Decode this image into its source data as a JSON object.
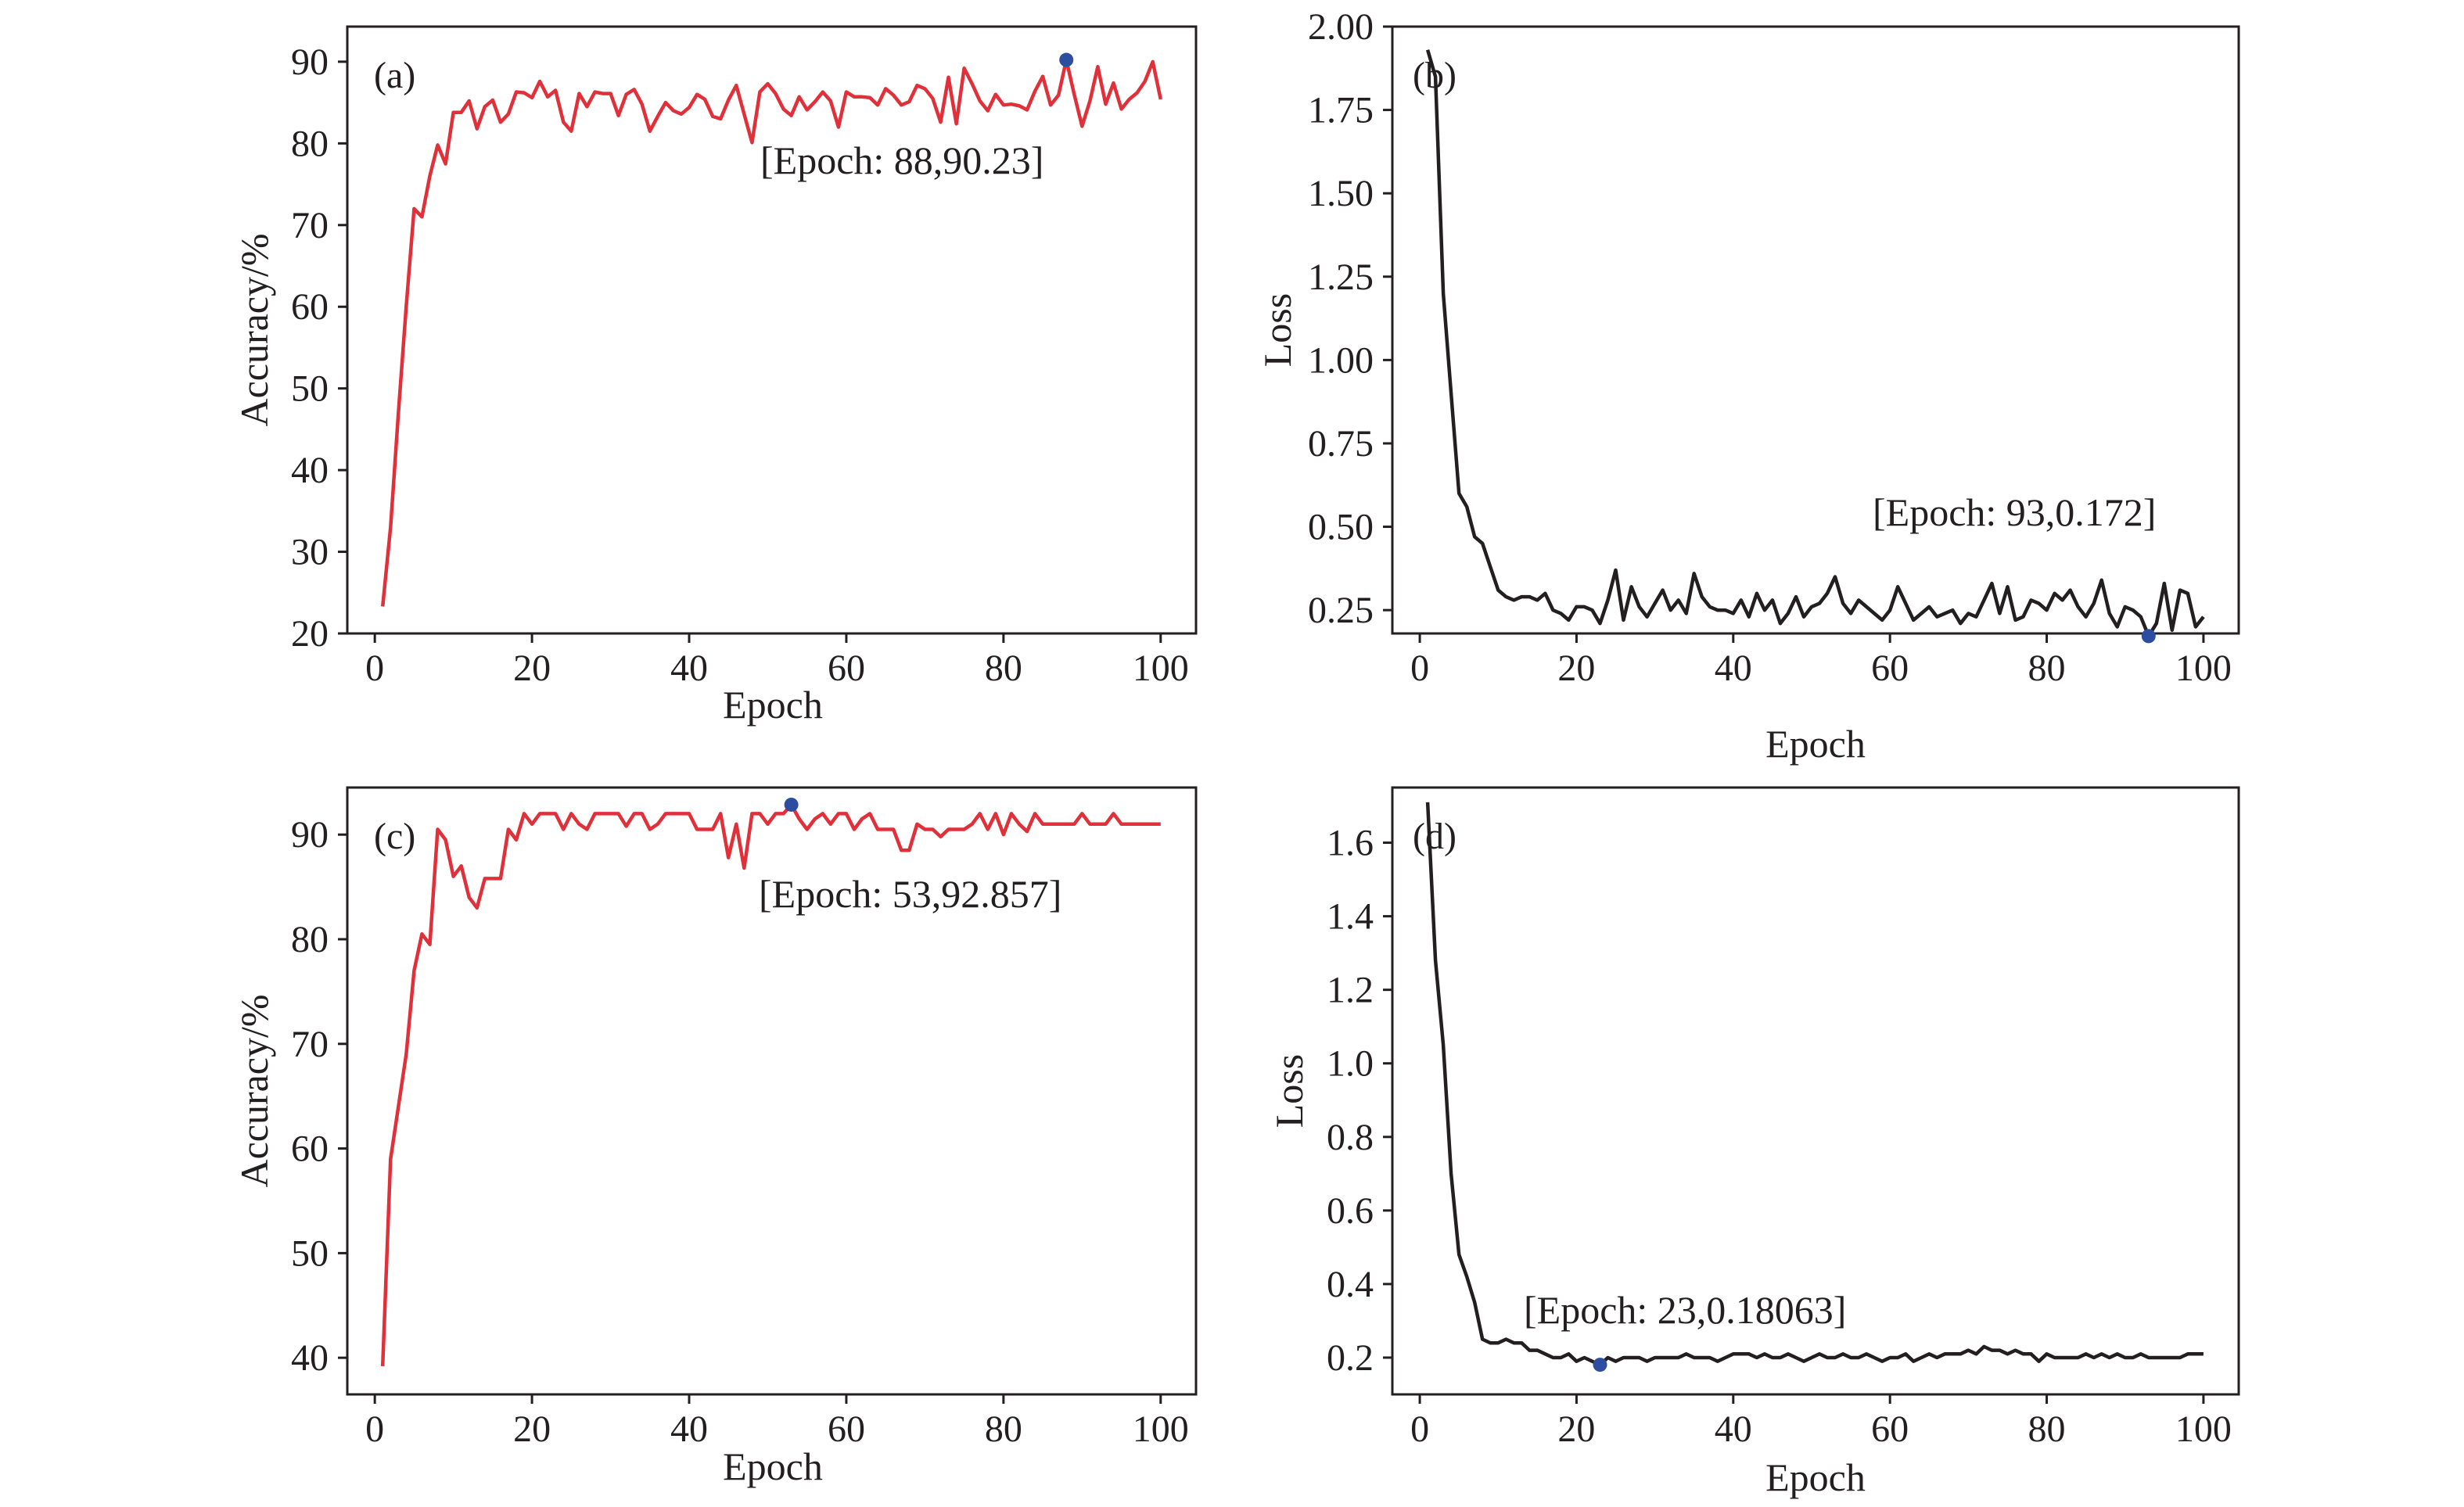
{
  "chart_data": [
    {
      "type": "line",
      "panel_label": "(a)",
      "xlabel": "Epoch",
      "ylabel": "Accuracy/%",
      "xlim": [
        -3.5,
        104.5
      ],
      "ylim": [
        20,
        94.3
      ],
      "x_ticks": [
        0,
        20,
        40,
        60,
        80,
        100
      ],
      "y_ticks": [
        20,
        30,
        40,
        50,
        60,
        70,
        80,
        90
      ],
      "tick_labels_x": [
        "0",
        "20",
        "40",
        "60",
        "80",
        "100"
      ],
      "tick_labels_y": [
        "20",
        "30",
        "40",
        "50",
        "60",
        "70",
        "80",
        "90"
      ],
      "line_color": "#e0303a",
      "marker_color": "#2c4da0",
      "series": [
        {
          "x_start": 1,
          "values": [
            23.3,
            33,
            47,
            60,
            72,
            71,
            76,
            79.8,
            77.5,
            83.8,
            83.8,
            85.2,
            81.8,
            84.5,
            85.3,
            82.6,
            83.6,
            86.3,
            86.2,
            85.6,
            87.6,
            85.7,
            86.5,
            82.6,
            81.5,
            86.1,
            84.5,
            86.3,
            86.1,
            86.1,
            83.4,
            86,
            86.6,
            84.8,
            81.5,
            83.3,
            85,
            84,
            83.6,
            84.4,
            86,
            85.4,
            83.3,
            83,
            85.3,
            87.1,
            83.6,
            80.1,
            86.3,
            87.3,
            86.1,
            84.2,
            83.4,
            85.7,
            84.1,
            85.1,
            86.3,
            85.2,
            82,
            86.3,
            85.7,
            85.7,
            85.6,
            84.7,
            86.7,
            85.9,
            84.7,
            85.1,
            87.1,
            86.7,
            85.5,
            82.6,
            88.1,
            82.4,
            89.2,
            87.3,
            85.2,
            84,
            86,
            84.7,
            84.8,
            84.6,
            84.1,
            86.4,
            88.2,
            84.7,
            85.9,
            90.23,
            86,
            82.1,
            85.2,
            89.4,
            84.8,
            87.4,
            84.2,
            85.4,
            86.2,
            87.6,
            90,
            85.4
          ]
        }
      ],
      "highlight": {
        "x": 88,
        "y": 90.23,
        "label": "[Epoch: 88,90.23]"
      }
    },
    {
      "type": "line",
      "panel_label": "(b)",
      "xlabel": "Epoch",
      "ylabel": "Loss",
      "xlim": [
        -3.5,
        104.5
      ],
      "ylim": [
        0.18,
        2.0
      ],
      "x_ticks": [
        0,
        20,
        40,
        60,
        80,
        100
      ],
      "y_ticks": [
        0.25,
        0.5,
        0.75,
        1.0,
        1.25,
        1.5,
        1.75,
        2.0
      ],
      "tick_labels_x": [
        "0",
        "20",
        "40",
        "60",
        "80",
        "100"
      ],
      "tick_labels_y": [
        "0.25",
        "0.50",
        "0.75",
        "1.00",
        "1.25",
        "1.50",
        "1.75",
        "2.00"
      ],
      "line_color": "#231f20",
      "marker_color": "#2c4da0",
      "series": [
        {
          "x_start": 1,
          "values": [
            1.93,
            1.85,
            1.2,
            0.9,
            0.6,
            0.56,
            0.47,
            0.45,
            0.38,
            0.31,
            0.29,
            0.28,
            0.29,
            0.29,
            0.28,
            0.3,
            0.25,
            0.24,
            0.22,
            0.26,
            0.26,
            0.25,
            0.21,
            0.28,
            0.37,
            0.22,
            0.32,
            0.26,
            0.23,
            0.27,
            0.31,
            0.25,
            0.28,
            0.24,
            0.36,
            0.29,
            0.26,
            0.25,
            0.25,
            0.24,
            0.28,
            0.23,
            0.3,
            0.25,
            0.28,
            0.21,
            0.24,
            0.29,
            0.23,
            0.26,
            0.27,
            0.3,
            0.35,
            0.27,
            0.24,
            0.28,
            0.26,
            0.24,
            0.22,
            0.25,
            0.32,
            0.27,
            0.22,
            0.24,
            0.26,
            0.23,
            0.24,
            0.25,
            0.21,
            0.24,
            0.23,
            0.28,
            0.33,
            0.24,
            0.32,
            0.22,
            0.23,
            0.28,
            0.27,
            0.25,
            0.3,
            0.28,
            0.31,
            0.26,
            0.23,
            0.27,
            0.34,
            0.24,
            0.2,
            0.26,
            0.25,
            0.23,
            0.172,
            0.21,
            0.33,
            0.19,
            0.31,
            0.3,
            0.2,
            0.23
          ]
        }
      ],
      "highlight": {
        "x": 93,
        "y": 0.172,
        "label": "[Epoch: 93,0.172]"
      }
    },
    {
      "type": "line",
      "panel_label": "(c)",
      "xlabel": "Epoch",
      "ylabel": "Accuracy/%",
      "xlim": [
        -3.5,
        104.5
      ],
      "ylim": [
        36.5,
        94.5
      ],
      "x_ticks": [
        0,
        20,
        40,
        60,
        80,
        100
      ],
      "y_ticks": [
        40,
        50,
        60,
        70,
        80,
        90
      ],
      "tick_labels_x": [
        "0",
        "20",
        "40",
        "60",
        "80",
        "100"
      ],
      "tick_labels_y": [
        "40",
        "50",
        "60",
        "70",
        "80",
        "90"
      ],
      "line_color": "#e0303a",
      "marker_color": "#2c4da0",
      "series": [
        {
          "x_start": 1,
          "values": [
            39.2,
            59,
            64,
            69,
            77,
            80.5,
            79.5,
            90.5,
            89.5,
            86,
            87,
            84,
            83,
            85.8,
            85.8,
            85.8,
            90.5,
            89.5,
            92,
            91,
            92,
            92,
            92,
            90.5,
            92,
            91,
            90.5,
            92,
            92,
            92,
            92,
            90.8,
            92,
            92,
            90.5,
            91,
            92,
            92,
            92,
            92,
            90.5,
            90.5,
            90.5,
            92,
            87.8,
            91,
            86.8,
            92,
            92,
            91,
            92,
            92,
            92.857,
            91.5,
            90.5,
            91.5,
            92,
            91,
            92,
            92,
            90.5,
            91.5,
            92,
            90.5,
            90.5,
            90.5,
            88.5,
            88.5,
            91,
            90.5,
            90.5,
            89.8,
            90.5,
            90.5,
            90.5,
            91,
            92,
            90.5,
            92,
            90,
            92,
            91,
            90.3,
            92,
            91,
            91,
            91,
            91,
            91,
            92,
            91,
            91,
            91,
            92,
            91,
            91,
            91,
            91,
            91,
            91
          ]
        }
      ],
      "highlight": {
        "x": 53,
        "y": 92.857,
        "label": "[Epoch: 53,92.857]"
      }
    },
    {
      "type": "line",
      "panel_label": "(d)",
      "xlabel": "Epoch",
      "ylabel": "Loss",
      "xlim": [
        -3.5,
        104.5
      ],
      "ylim": [
        0.1,
        1.75
      ],
      "x_ticks": [
        0,
        20,
        40,
        60,
        80,
        100
      ],
      "y_ticks": [
        0.2,
        0.4,
        0.6,
        0.8,
        1.0,
        1.2,
        1.4,
        1.6
      ],
      "tick_labels_x": [
        "0",
        "20",
        "40",
        "60",
        "80",
        "100"
      ],
      "tick_labels_y": [
        "0.2",
        "0.4",
        "0.6",
        "0.8",
        "1.0",
        "1.2",
        "1.4",
        "1.6"
      ],
      "line_color": "#231f20",
      "marker_color": "#2c4da0",
      "series": [
        {
          "x_start": 1,
          "values": [
            1.71,
            1.28,
            1.05,
            0.7,
            0.48,
            0.42,
            0.35,
            0.25,
            0.24,
            0.24,
            0.25,
            0.24,
            0.24,
            0.22,
            0.22,
            0.21,
            0.2,
            0.2,
            0.21,
            0.19,
            0.2,
            0.19,
            0.18063,
            0.2,
            0.19,
            0.2,
            0.2,
            0.2,
            0.19,
            0.2,
            0.2,
            0.2,
            0.2,
            0.21,
            0.2,
            0.2,
            0.2,
            0.19,
            0.2,
            0.21,
            0.21,
            0.21,
            0.2,
            0.21,
            0.2,
            0.2,
            0.21,
            0.2,
            0.19,
            0.2,
            0.21,
            0.2,
            0.2,
            0.21,
            0.2,
            0.2,
            0.21,
            0.2,
            0.19,
            0.2,
            0.2,
            0.21,
            0.19,
            0.2,
            0.21,
            0.2,
            0.21,
            0.21,
            0.21,
            0.22,
            0.21,
            0.23,
            0.22,
            0.22,
            0.21,
            0.22,
            0.21,
            0.21,
            0.19,
            0.21,
            0.2,
            0.2,
            0.2,
            0.2,
            0.21,
            0.2,
            0.21,
            0.2,
            0.21,
            0.2,
            0.2,
            0.21,
            0.2,
            0.2,
            0.2,
            0.2,
            0.2,
            0.21,
            0.21,
            0.21
          ]
        }
      ],
      "highlight": {
        "x": 23,
        "y": 0.18063,
        "label": "[Epoch: 23,0.18063]"
      }
    }
  ]
}
